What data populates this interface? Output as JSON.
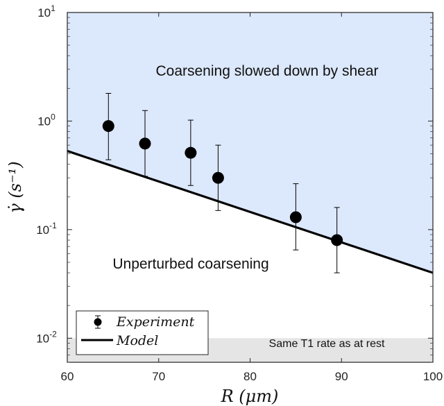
{
  "chart_data": {
    "type": "scatter",
    "title": "",
    "xlabel": "R (μm)",
    "ylabel": "γ̇ (s⁻¹)",
    "xlim": [
      60,
      100
    ],
    "ylim": [
      0.006,
      10
    ],
    "yscale": "log",
    "x_ticks": [
      60,
      70,
      80,
      90,
      100
    ],
    "y_ticks": [
      {
        "value": 0.01,
        "base": "10",
        "exp": "-2"
      },
      {
        "value": 0.1,
        "base": "10",
        "exp": "-1"
      },
      {
        "value": 1,
        "base": "10",
        "exp": "0"
      },
      {
        "value": 10,
        "base": "10",
        "exp": "1"
      }
    ],
    "grid": false,
    "legend_position": "bottom-left",
    "series": [
      {
        "name": "Experiment",
        "kind": "points-with-errorbars",
        "color": "#000000",
        "points": [
          {
            "x": 64.5,
            "y": 0.9,
            "err_low": 0.44,
            "err_high": 1.8
          },
          {
            "x": 68.5,
            "y": 0.62,
            "err_low": 0.31,
            "err_high": 1.25
          },
          {
            "x": 73.5,
            "y": 0.51,
            "err_low": 0.255,
            "err_high": 1.02
          },
          {
            "x": 76.5,
            "y": 0.3,
            "err_low": 0.15,
            "err_high": 0.6
          },
          {
            "x": 85.0,
            "y": 0.13,
            "err_low": 0.065,
            "err_high": 0.265
          },
          {
            "x": 89.5,
            "y": 0.08,
            "err_low": 0.04,
            "err_high": 0.16
          }
        ]
      },
      {
        "name": "Model",
        "kind": "line",
        "color": "#000000",
        "points": [
          {
            "x": 60,
            "y": 0.53
          },
          {
            "x": 100,
            "y": 0.04
          }
        ]
      }
    ],
    "regions": [
      {
        "label": "Coarsening slowed down by shear",
        "fill": "#dce8fb",
        "bound": "above-model"
      },
      {
        "label": "Unperturbed coarsening",
        "fill": "#ffffff",
        "bound": "below-model"
      },
      {
        "label": "Same T1 rate as at rest",
        "fill": "#e5e5e5",
        "y_max": 0.01
      }
    ]
  }
}
